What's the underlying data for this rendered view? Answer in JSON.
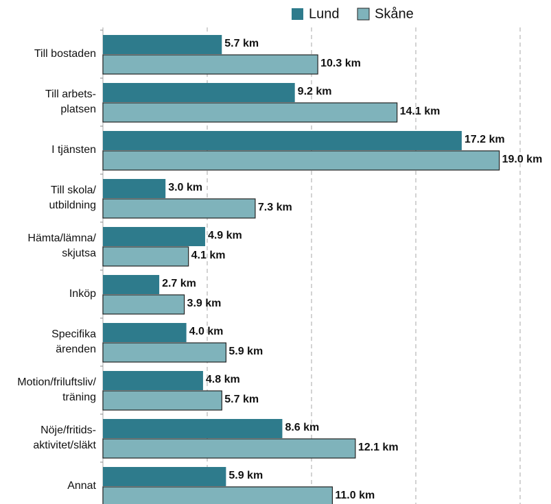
{
  "chart_data": {
    "type": "barh",
    "categories": [
      "Till bostaden",
      "Till arbets-\nplatsen",
      "I tjänsten",
      "Till skola/\nutbildning",
      "Hämta/lämna/\nskjutsa",
      "Inköp",
      "Specifika\närenden",
      "Motion/friluftsliv/\nträning",
      "Nöje/fritids-\naktivitet/släkt",
      "Annat"
    ],
    "series": [
      {
        "name": "Lund",
        "color": "#2e7b8c",
        "values": [
          5.7,
          9.2,
          17.2,
          3.0,
          4.9,
          2.7,
          4.0,
          4.8,
          8.6,
          5.9
        ],
        "value_labels": [
          "5.7 km",
          "9.2 km",
          "17.2 km",
          "3.0 km",
          "4.9 km",
          "2.7 km",
          "4.0 km",
          "4.8 km",
          "8.6 km",
          "5.9 km"
        ]
      },
      {
        "name": "Skåne",
        "color": "#7fb3bb",
        "values": [
          10.3,
          14.1,
          19.0,
          7.3,
          4.1,
          3.9,
          5.9,
          5.7,
          12.1,
          11.0
        ],
        "value_labels": [
          "10.3 km",
          "14.1 km",
          "19.0 km",
          "7.3 km",
          "4.1 km",
          "3.9 km",
          "5.9 km",
          "5.7 km",
          "12.1 km",
          "11.0 km"
        ]
      }
    ],
    "xlim": [
      0,
      20
    ],
    "xticks": [
      0,
      5,
      10,
      15,
      20
    ],
    "grid": true,
    "legend": "top"
  }
}
